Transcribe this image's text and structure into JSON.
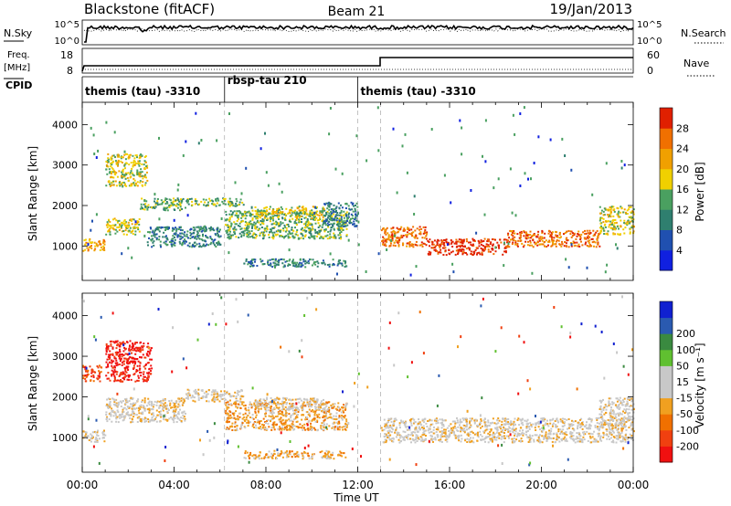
{
  "header": {
    "site": "Blackstone (fitACF)",
    "beam": "Beam 21",
    "date": "19/Jan/2013"
  },
  "noise_panel": {
    "left_label": "N.Sky",
    "right_label": "N.Search",
    "left_ticks": [
      "10^5",
      "10^0"
    ],
    "right_ticks": [
      "10^5",
      "10^0"
    ]
  },
  "freq_panel": {
    "left_label": "Freq.",
    "left_unit": "[MHz]",
    "right_label": "Nave",
    "left_ticks": [
      "18",
      "8"
    ],
    "right_ticks": [
      "60",
      "0"
    ]
  },
  "cpid_panel": {
    "label": "CPID",
    "segments": [
      {
        "start_hour": 0,
        "end_hour": 6.2,
        "name": "themis (tau) -3310"
      },
      {
        "start_hour": 6.2,
        "end_hour": 12.0,
        "name": "rbsp-tau 210"
      },
      {
        "start_hour": 12.0,
        "end_hour": 24,
        "name": "themis (tau) -3310"
      }
    ]
  },
  "colors": {
    "power": [
      "#1020e0",
      "#2050b0",
      "#2f7f6f",
      "#4aa060",
      "#f0d000",
      "#f0a000",
      "#f07000",
      "#e02000"
    ],
    "velocity": [
      "#f01010",
      "#f04010",
      "#f07000",
      "#f0a020",
      "#c8c8c8",
      "#c8c8c8",
      "#60c030",
      "#3a8a40",
      "#2a5ab0",
      "#1020d0"
    ]
  },
  "chart_data": [
    {
      "type": "heatmap",
      "name": "power",
      "xlabel": "",
      "ylabel": "Slant Range [km]",
      "xlim": [
        0,
        24
      ],
      "ylim": [
        150,
        4550
      ],
      "y_ticks": [
        1000,
        2000,
        3000,
        4000
      ],
      "colorbar": {
        "label": "Power [dB]",
        "ticks": [
          "4",
          "8",
          "12",
          "16",
          "20",
          "24",
          "28"
        ],
        "range": [
          0,
          32
        ]
      },
      "bands": [
        {
          "x_start": 0.0,
          "x_end": 1.0,
          "y_start": 900,
          "y_end": 1200,
          "level": 5
        },
        {
          "x_start": 1.0,
          "x_end": 2.5,
          "y_start": 1300,
          "y_end": 1700,
          "level": 4
        },
        {
          "x_start": 1.0,
          "x_end": 2.8,
          "y_start": 2500,
          "y_end": 3300,
          "level": 4
        },
        {
          "x_start": 2.5,
          "x_end": 4.5,
          "y_start": 1900,
          "y_end": 2200,
          "level": 3
        },
        {
          "x_start": 2.8,
          "x_end": 6.0,
          "y_start": 1000,
          "y_end": 1500,
          "level": 2
        },
        {
          "x_start": 4.5,
          "x_end": 7.0,
          "y_start": 2000,
          "y_end": 2200,
          "level": 3
        },
        {
          "x_start": 6.2,
          "x_end": 11.5,
          "y_start": 1200,
          "y_end": 1900,
          "level": 3
        },
        {
          "x_start": 7.5,
          "x_end": 10.5,
          "y_start": 1700,
          "y_end": 2000,
          "level": 4
        },
        {
          "x_start": 7.0,
          "x_end": 11.5,
          "y_start": 500,
          "y_end": 700,
          "level": 2
        },
        {
          "x_start": 10.5,
          "x_end": 12.0,
          "y_start": 1500,
          "y_end": 2100,
          "level": 2
        },
        {
          "x_start": 13.0,
          "x_end": 15.0,
          "y_start": 1000,
          "y_end": 1500,
          "level": 6
        },
        {
          "x_start": 15.0,
          "x_end": 18.5,
          "y_start": 800,
          "y_end": 1200,
          "level": 7
        },
        {
          "x_start": 18.5,
          "x_end": 22.5,
          "y_start": 1000,
          "y_end": 1400,
          "level": 6
        },
        {
          "x_start": 22.5,
          "x_end": 24.0,
          "y_start": 1300,
          "y_end": 2000,
          "level": 4
        }
      ]
    },
    {
      "type": "heatmap",
      "name": "velocity",
      "xlabel": "Time UT",
      "ylabel": "Slant Range [km]",
      "xlim": [
        0,
        24
      ],
      "ylim": [
        150,
        4550
      ],
      "x_ticks": [
        "00:00",
        "04:00",
        "08:00",
        "12:00",
        "16:00",
        "20:00",
        "00:00"
      ],
      "y_ticks": [
        1000,
        2000,
        3000,
        4000
      ],
      "colorbar": {
        "label": "Velocity [m s⁻¹]",
        "ticks": [
          "-200",
          "-100",
          "-50",
          "-15",
          "15",
          "50",
          "100",
          "200"
        ],
        "range": [
          -250,
          250
        ]
      },
      "bands": [
        {
          "x_start": 0.0,
          "x_end": 1.0,
          "y_start": 900,
          "y_end": 1200,
          "level": 4
        },
        {
          "x_start": 0.0,
          "x_end": 0.8,
          "y_start": 2400,
          "y_end": 2800,
          "level": 1
        },
        {
          "x_start": 1.0,
          "x_end": 3.0,
          "y_start": 2400,
          "y_end": 3400,
          "level": 0
        },
        {
          "x_start": 1.0,
          "x_end": 4.5,
          "y_start": 1400,
          "y_end": 2000,
          "level": 4
        },
        {
          "x_start": 4.5,
          "x_end": 7.0,
          "y_start": 1900,
          "y_end": 2200,
          "level": 4
        },
        {
          "x_start": 6.2,
          "x_end": 11.5,
          "y_start": 1200,
          "y_end": 1900,
          "level": 3
        },
        {
          "x_start": 7.5,
          "x_end": 10.5,
          "y_start": 1700,
          "y_end": 2000,
          "level": 4
        },
        {
          "x_start": 7.0,
          "x_end": 11.5,
          "y_start": 500,
          "y_end": 700,
          "level": 3
        },
        {
          "x_start": 13.0,
          "x_end": 24.0,
          "y_start": 900,
          "y_end": 1500,
          "level": 4
        },
        {
          "x_start": 22.5,
          "x_end": 24.0,
          "y_start": 1300,
          "y_end": 2000,
          "level": 4
        }
      ]
    }
  ]
}
